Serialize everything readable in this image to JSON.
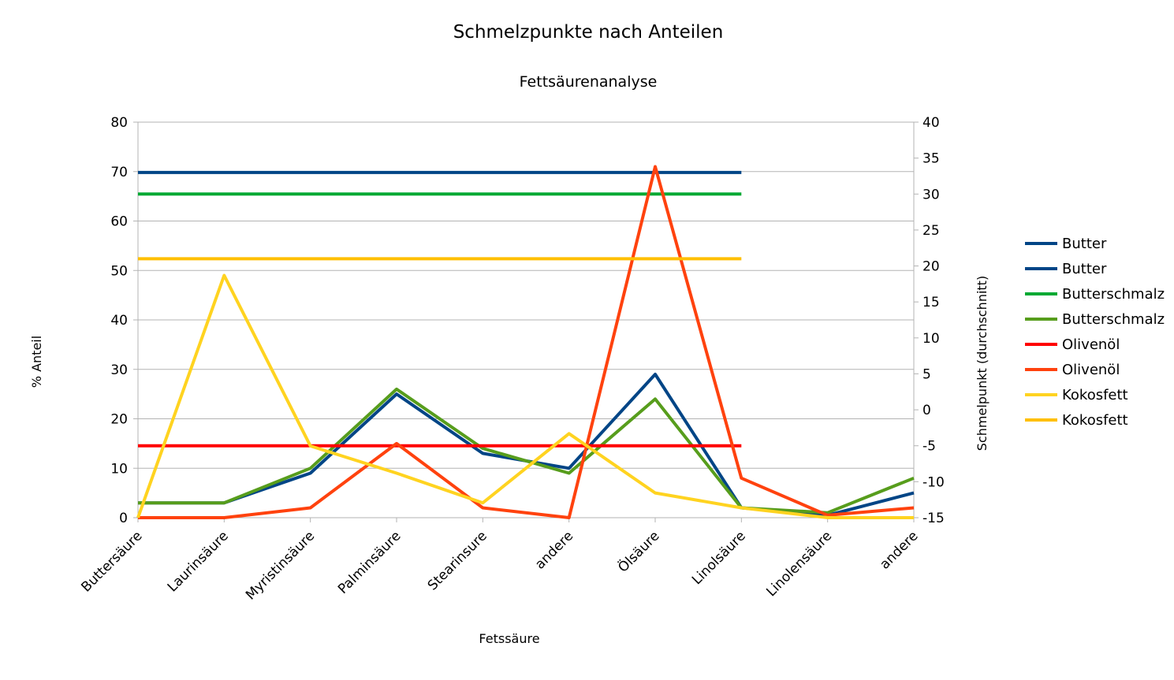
{
  "chart_data": {
    "type": "line",
    "title": "Schmelzpunkte nach Anteilen",
    "subtitle": "Fettsäurenanalyse",
    "xlabel": "Fetssäure",
    "ylabel": "% Anteil",
    "y2label": "Schmelpunkt (durchschnitt)",
    "categories": [
      "Buttersäure",
      "Laurinsäure",
      "Myristinsäure",
      "Palminsäure",
      "Stearinsure",
      "andere",
      "Ölsäure",
      "Linolsäure",
      "Linolensäure",
      "andere"
    ],
    "ylim": [
      0,
      80
    ],
    "yticks": [
      "0",
      "10",
      "20",
      "30",
      "40",
      "50",
      "60",
      "70",
      "80"
    ],
    "y2lim": [
      -15,
      40
    ],
    "y2ticks": [
      "-15",
      "-10",
      "-5",
      "0",
      "5",
      "10",
      "15",
      "20",
      "25",
      "30",
      "35",
      "40"
    ],
    "grid": "horizontal",
    "legend_position": "right",
    "series": [
      {
        "name": "Butter",
        "axis": "secondary",
        "color": "#004586",
        "values": [
          33,
          33,
          33,
          33,
          33,
          33,
          33,
          33,
          null,
          null
        ]
      },
      {
        "name": "Butter",
        "axis": "primary",
        "color": "#004586",
        "values": [
          3,
          3,
          9,
          25,
          13,
          10,
          29,
          2,
          0.5,
          5
        ]
      },
      {
        "name": "Butterschmalz",
        "axis": "secondary",
        "color": "#00a933",
        "values": [
          30,
          30,
          30,
          30,
          30,
          30,
          30,
          30,
          null,
          null
        ]
      },
      {
        "name": "Butterschmalz",
        "axis": "primary",
        "color": "#579d1c",
        "values": [
          3,
          3,
          10,
          26,
          14,
          9,
          24,
          2,
          1,
          8
        ]
      },
      {
        "name": "Olivenöl",
        "axis": "secondary",
        "color": "#ff0000",
        "values": [
          -5,
          -5,
          -5,
          -5,
          -5,
          -5,
          -5,
          -5,
          null,
          null
        ]
      },
      {
        "name": "Olivenöl",
        "axis": "primary",
        "color": "#ff420e",
        "values": [
          0,
          0,
          2,
          15,
          2,
          0,
          71,
          8,
          0.5,
          2
        ]
      },
      {
        "name": "Kokosfett",
        "axis": "primary",
        "color": "#ffd320",
        "values": [
          0,
          49,
          14.5,
          9,
          3,
          17,
          5,
          2,
          0,
          0
        ]
      },
      {
        "name": "Kokosfett",
        "axis": "secondary",
        "color": "#ffbf00",
        "values": [
          21,
          21,
          21,
          21,
          21,
          21,
          21,
          21,
          null,
          null
        ]
      }
    ]
  }
}
